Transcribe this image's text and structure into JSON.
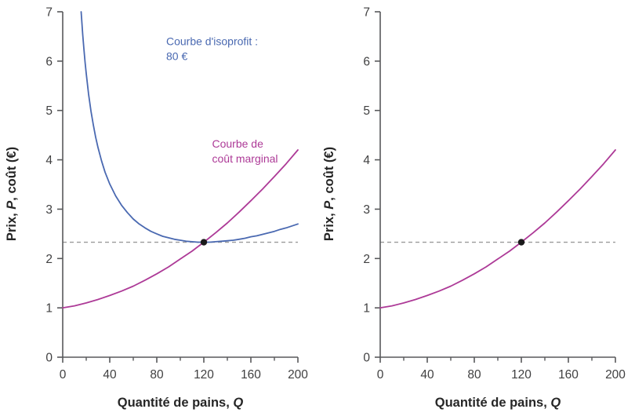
{
  "figure": {
    "background": "#ffffff"
  },
  "chart_data": [
    {
      "type": "line",
      "panel": "left",
      "title": "",
      "xlabel": "Quantité de pains, Q",
      "ylabel": "Prix, P, coût (€)",
      "xlim": [
        0,
        200
      ],
      "ylim": [
        0,
        7
      ],
      "xticks_major": [
        0,
        40,
        80,
        120,
        160,
        200
      ],
      "xticks_minor": [
        20,
        60,
        100,
        140,
        180
      ],
      "yticks": [
        0,
        1,
        2,
        3,
        4,
        5,
        6,
        7
      ],
      "grid": false,
      "legend": "none",
      "axis_color": "#58595b",
      "tick_label_color": "#404041",
      "axis_title_color": "#262626",
      "dashed_guide": {
        "y": 2.33,
        "color": "#9b9b9b"
      },
      "point": {
        "x": 120,
        "y": 2.33,
        "color": "#1a1a1a"
      },
      "series": [
        {
          "name": "Courbe d'isoprofit : 80 €",
          "color": "#4a69b1",
          "points": [
            [
              15.7,
              7.0
            ],
            [
              17,
              6.54
            ],
            [
              18,
              6.25
            ],
            [
              19,
              5.98
            ],
            [
              20,
              5.75
            ],
            [
              22,
              5.33
            ],
            [
              24,
              4.99
            ],
            [
              26,
              4.71
            ],
            [
              28,
              4.46
            ],
            [
              30,
              4.25
            ],
            [
              33,
              3.98
            ],
            [
              36,
              3.75
            ],
            [
              40,
              3.51
            ],
            [
              45,
              3.27
            ],
            [
              50,
              3.08
            ],
            [
              55,
              2.93
            ],
            [
              60,
              2.8
            ],
            [
              65,
              2.7
            ],
            [
              70,
              2.62
            ],
            [
              75,
              2.55
            ],
            [
              80,
              2.5
            ],
            [
              85,
              2.45
            ],
            [
              90,
              2.42
            ],
            [
              95,
              2.39
            ],
            [
              100,
              2.37
            ],
            [
              105,
              2.35
            ],
            [
              110,
              2.34
            ],
            [
              115,
              2.33
            ],
            [
              120,
              2.33
            ],
            [
              125,
              2.33
            ],
            [
              130,
              2.34
            ],
            [
              135,
              2.35
            ],
            [
              140,
              2.36
            ],
            [
              145,
              2.37
            ],
            [
              150,
              2.39
            ],
            [
              155,
              2.41
            ],
            [
              160,
              2.44
            ],
            [
              165,
              2.46
            ],
            [
              170,
              2.49
            ],
            [
              175,
              2.52
            ],
            [
              180,
              2.55
            ],
            [
              185,
              2.59
            ],
            [
              190,
              2.62
            ],
            [
              195,
              2.66
            ],
            [
              200,
              2.7
            ]
          ]
        },
        {
          "name": "Courbe de coût marginal",
          "color": "#ad3a97",
          "points": [
            [
              0,
              1.0
            ],
            [
              10,
              1.04
            ],
            [
              20,
              1.1
            ],
            [
              30,
              1.17
            ],
            [
              40,
              1.25
            ],
            [
              50,
              1.34
            ],
            [
              60,
              1.44
            ],
            [
              70,
              1.56
            ],
            [
              80,
              1.69
            ],
            [
              90,
              1.83
            ],
            [
              100,
              1.99
            ],
            [
              110,
              2.15
            ],
            [
              120,
              2.33
            ],
            [
              130,
              2.52
            ],
            [
              140,
              2.72
            ],
            [
              150,
              2.94
            ],
            [
              160,
              3.17
            ],
            [
              170,
              3.41
            ],
            [
              180,
              3.66
            ],
            [
              190,
              3.92
            ],
            [
              200,
              4.2
            ]
          ]
        }
      ],
      "annotations": [
        {
          "lines": [
            "Courbe d'isoprofit :",
            "80 €"
          ],
          "color": "#4a69b1",
          "x": 88,
          "y": 6.55
        },
        {
          "lines": [
            "Courbe de",
            "coût marginal"
          ],
          "color": "#ad3a97",
          "x": 127,
          "y": 4.47
        }
      ]
    },
    {
      "type": "line",
      "panel": "right",
      "title": "",
      "xlabel": "Quantité de pains, Q",
      "ylabel": "Prix, P, coût (€)",
      "xlim": [
        0,
        200
      ],
      "ylim": [
        0,
        7
      ],
      "xticks_major": [
        0,
        40,
        80,
        120,
        160,
        200
      ],
      "xticks_minor": [
        20,
        60,
        100,
        140,
        180
      ],
      "yticks": [
        0,
        1,
        2,
        3,
        4,
        5,
        6,
        7
      ],
      "grid": false,
      "legend": "none",
      "axis_color": "#58595b",
      "tick_label_color": "#404041",
      "axis_title_color": "#262626",
      "dashed_guide": {
        "y": 2.33,
        "color": "#9b9b9b"
      },
      "point": {
        "x": 120,
        "y": 2.33,
        "color": "#1a1a1a"
      },
      "series": [
        {
          "name": "Courbe de coût marginal",
          "color": "#ad3a97",
          "points": [
            [
              0,
              1.0
            ],
            [
              10,
              1.04
            ],
            [
              20,
              1.1
            ],
            [
              30,
              1.17
            ],
            [
              40,
              1.25
            ],
            [
              50,
              1.34
            ],
            [
              60,
              1.44
            ],
            [
              70,
              1.56
            ],
            [
              80,
              1.69
            ],
            [
              90,
              1.83
            ],
            [
              100,
              1.99
            ],
            [
              110,
              2.15
            ],
            [
              120,
              2.33
            ],
            [
              130,
              2.52
            ],
            [
              140,
              2.72
            ],
            [
              150,
              2.94
            ],
            [
              160,
              3.17
            ],
            [
              170,
              3.41
            ],
            [
              180,
              3.66
            ],
            [
              190,
              3.92
            ],
            [
              200,
              4.2
            ]
          ]
        }
      ],
      "annotations": []
    }
  ]
}
